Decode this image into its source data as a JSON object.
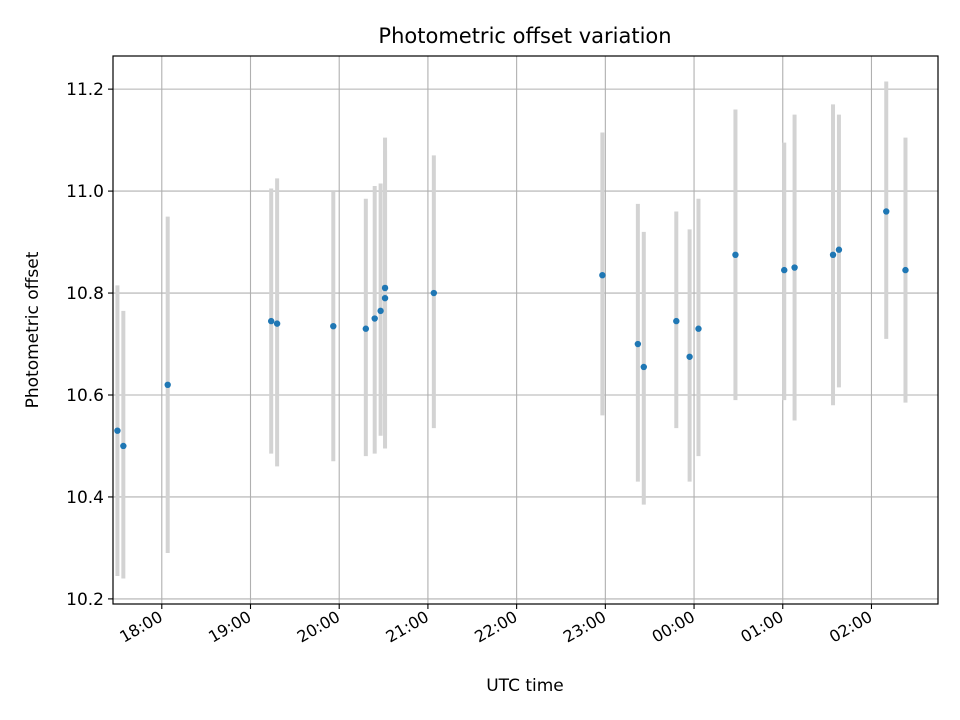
{
  "chart_data": {
    "type": "scatter",
    "title": "Photometric offset variation",
    "xlabel": "UTC time",
    "ylabel": "Photometric offset",
    "xlim": [
      "17:27",
      "02:45"
    ],
    "ylim": [
      10.19,
      11.265
    ],
    "grid": true,
    "legend": "none",
    "x_ticks": [
      "18:00",
      "19:00",
      "20:00",
      "21:00",
      "22:00",
      "23:00",
      "00:00",
      "01:00",
      "02:00"
    ],
    "y_ticks": [
      10.2,
      10.4,
      10.6,
      10.8,
      11.0,
      11.2
    ],
    "colors": {
      "point": "#1f77b4",
      "errorbar": "#d3d3d3",
      "grid": "#b0b0b0"
    },
    "points": [
      {
        "x": "17:30",
        "y": 10.53,
        "ylow": 10.245,
        "yhigh": 10.815
      },
      {
        "x": "17:34",
        "y": 10.5,
        "ylow": 10.24,
        "yhigh": 10.765
      },
      {
        "x": "18:04",
        "y": 10.62,
        "ylow": 10.29,
        "yhigh": 10.95
      },
      {
        "x": "19:14",
        "y": 10.745,
        "ylow": 10.485,
        "yhigh": 11.005
      },
      {
        "x": "19:18",
        "y": 10.74,
        "ylow": 10.46,
        "yhigh": 11.025
      },
      {
        "x": "19:56",
        "y": 10.735,
        "ylow": 10.47,
        "yhigh": 11.0
      },
      {
        "x": "20:18",
        "y": 10.73,
        "ylow": 10.48,
        "yhigh": 10.985
      },
      {
        "x": "20:24",
        "y": 10.75,
        "ylow": 10.485,
        "yhigh": 11.01
      },
      {
        "x": "20:28",
        "y": 10.765,
        "ylow": 10.52,
        "yhigh": 11.015
      },
      {
        "x": "20:31",
        "y": 10.79,
        "ylow": 10.495,
        "yhigh": 11.08
      },
      {
        "x": "20:31",
        "y": 10.81,
        "ylow": 10.52,
        "yhigh": 11.105
      },
      {
        "x": "21:04",
        "y": 10.8,
        "ylow": 10.535,
        "yhigh": 11.07
      },
      {
        "x": "22:58",
        "y": 10.835,
        "ylow": 10.56,
        "yhigh": 11.115
      },
      {
        "x": "23:22",
        "y": 10.7,
        "ylow": 10.43,
        "yhigh": 10.975
      },
      {
        "x": "23:26",
        "y": 10.655,
        "ylow": 10.385,
        "yhigh": 10.92
      },
      {
        "x": "23:48",
        "y": 10.745,
        "ylow": 10.535,
        "yhigh": 10.96
      },
      {
        "x": "23:57",
        "y": 10.675,
        "ylow": 10.43,
        "yhigh": 10.925
      },
      {
        "x": "00:03",
        "y": 10.73,
        "ylow": 10.48,
        "yhigh": 10.985
      },
      {
        "x": "00:28",
        "y": 10.875,
        "ylow": 10.59,
        "yhigh": 11.16
      },
      {
        "x": "01:01",
        "y": 10.845,
        "ylow": 10.59,
        "yhigh": 11.095
      },
      {
        "x": "01:08",
        "y": 10.85,
        "ylow": 10.55,
        "yhigh": 11.15
      },
      {
        "x": "01:34",
        "y": 10.875,
        "ylow": 10.58,
        "yhigh": 11.17
      },
      {
        "x": "01:38",
        "y": 10.885,
        "ylow": 10.615,
        "yhigh": 11.15
      },
      {
        "x": "02:10",
        "y": 10.96,
        "ylow": 10.71,
        "yhigh": 11.215
      },
      {
        "x": "02:23",
        "y": 10.845,
        "ylow": 10.585,
        "yhigh": 11.105
      }
    ]
  }
}
